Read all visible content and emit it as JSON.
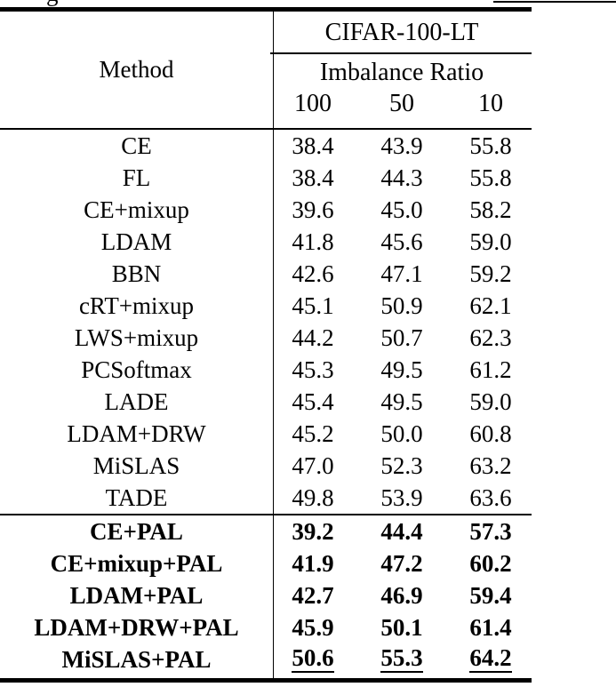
{
  "colors": {
    "background": "#ffffff",
    "text": "#000000",
    "rule": "#000000"
  },
  "cropped_fragment": {
    "glyph": "g"
  },
  "table": {
    "method_header": "Method",
    "dataset_header": "CIFAR-100-LT",
    "subheader": "Imbalance Ratio",
    "ratio_columns": [
      "100",
      "50",
      "10"
    ],
    "baseline_rows": [
      {
        "method": "CE",
        "values": [
          "38.4",
          "43.9",
          "55.8"
        ]
      },
      {
        "method": "FL",
        "values": [
          "38.4",
          "44.3",
          "55.8"
        ]
      },
      {
        "method": "CE+mixup",
        "values": [
          "39.6",
          "45.0",
          "58.2"
        ]
      },
      {
        "method": "LDAM",
        "values": [
          "41.8",
          "45.6",
          "59.0"
        ]
      },
      {
        "method": "BBN",
        "values": [
          "42.6",
          "47.1",
          "59.2"
        ]
      },
      {
        "method": "cRT+mixup",
        "values": [
          "45.1",
          "50.9",
          "62.1"
        ]
      },
      {
        "method": "LWS+mixup",
        "values": [
          "44.2",
          "50.7",
          "62.3"
        ]
      },
      {
        "method": "PCSoftmax",
        "values": [
          "45.3",
          "49.5",
          "61.2"
        ]
      },
      {
        "method": "LADE",
        "values": [
          "45.4",
          "49.5",
          "59.0"
        ]
      },
      {
        "method": "LDAM+DRW",
        "values": [
          "45.2",
          "50.0",
          "60.8"
        ]
      },
      {
        "method": "MiSLAS",
        "values": [
          "47.0",
          "52.3",
          "63.2"
        ]
      },
      {
        "method": "TADE",
        "values": [
          "49.8",
          "53.9",
          "63.6"
        ]
      }
    ],
    "pal_rows": [
      {
        "method": "CE+PAL",
        "values": [
          "39.2",
          "44.4",
          "57.3"
        ],
        "underline": false
      },
      {
        "method": "CE+mixup+PAL",
        "values": [
          "41.9",
          "47.2",
          "60.2"
        ],
        "underline": false
      },
      {
        "method": "LDAM+PAL",
        "values": [
          "42.7",
          "46.9",
          "59.4"
        ],
        "underline": false
      },
      {
        "method": "LDAM+DRW+PAL",
        "values": [
          "45.9",
          "50.1",
          "61.4"
        ],
        "underline": false
      },
      {
        "method": "MiSLAS+PAL",
        "values": [
          "50.6",
          "55.3",
          "64.2"
        ],
        "underline": true
      }
    ]
  }
}
